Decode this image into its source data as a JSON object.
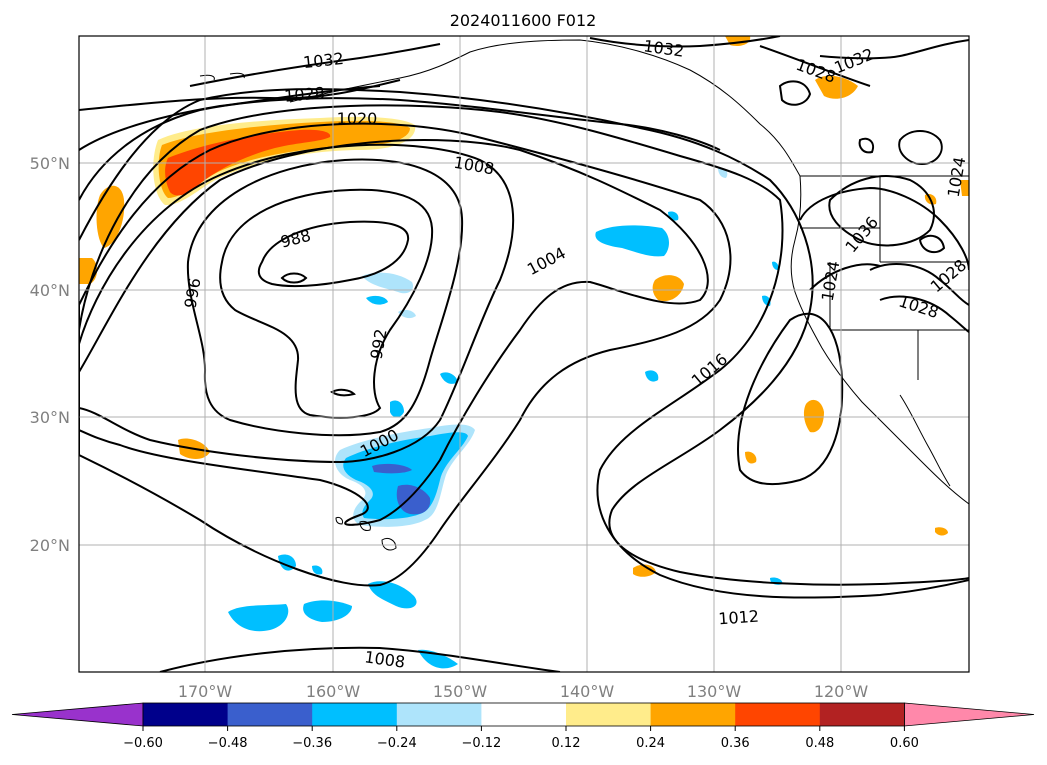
{
  "title": "2024011600 F012",
  "lat_ticks": [
    "50°N",
    "40°N",
    "30°N",
    "20°N"
  ],
  "lon_ticks": [
    "170°W",
    "160°W",
    "150°W",
    "140°W",
    "130°W",
    "120°W"
  ],
  "contour_labels": [
    "1032",
    "1028",
    "1020",
    "1008",
    "988",
    "996",
    "992",
    "1004",
    "1000",
    "1016",
    "1012",
    "1008",
    "1032",
    "1028",
    "1032",
    "1036",
    "1024",
    "1028",
    "1024",
    "1028"
  ],
  "colorbar": {
    "ticks": [
      "−0.60",
      "−0.48",
      "−0.36",
      "−0.24",
      "−0.12",
      "0.12",
      "0.24",
      "0.36",
      "0.48",
      "0.60"
    ],
    "colors": [
      "#9932cc",
      "#00008b",
      "#3a5fcd",
      "#00bfff",
      "#aee4fb",
      "#ffffff",
      "#ffec8b",
      "#ffa500",
      "#ff4500",
      "#b22222",
      "#ff88aa"
    ]
  },
  "colors": {
    "positive_weak": "#ffec8b",
    "positive_mid": "#ffa500",
    "positive_strong": "#ff4500",
    "negative_weak": "#aee4fb",
    "negative_mid": "#00bfff",
    "negative_strong": "#3a5fcd"
  }
}
